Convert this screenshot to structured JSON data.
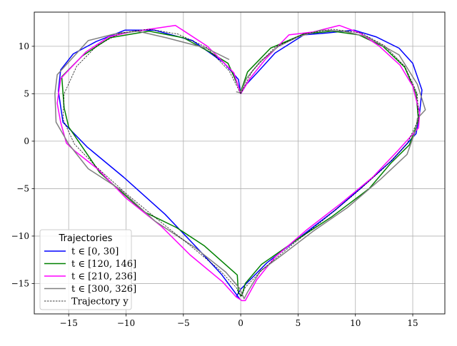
{
  "chart_data": {
    "type": "line",
    "title": "",
    "xlabel": "",
    "ylabel": "",
    "xlim": [
      -18.0,
      17.8
    ],
    "ylim": [
      -18.2,
      13.6
    ],
    "xticks": [
      -15,
      -10,
      -5,
      0,
      5,
      10,
      15
    ],
    "yticks": [
      -15,
      -10,
      -5,
      0,
      5,
      10
    ],
    "xtick_labels": [
      "−15",
      "−10",
      "−5",
      "0",
      "5",
      "10",
      "15"
    ],
    "ytick_labels": [
      "−15",
      "−10",
      "−5",
      "0",
      "5",
      "10"
    ],
    "grid": true,
    "legend": {
      "title": "Trajectories",
      "placement": "lower-left",
      "entries": [
        "t ∈ [0, 30]",
        "t ∈ [120, 146]",
        "t ∈ [210, 236]",
        "t ∈ [300, 326]",
        "Trajectory y"
      ]
    },
    "series": [
      {
        "name": "t ∈ [0, 30]",
        "color": "#0000ff",
        "style": "solid",
        "points": [
          [
            0,
            5
          ],
          [
            0.5,
            6
          ],
          [
            1.5,
            7.3
          ],
          [
            3.0,
            9.3
          ],
          [
            5.5,
            11.2
          ],
          [
            7.5,
            11.4
          ],
          [
            9.9,
            11.7
          ],
          [
            11.8,
            11.0
          ],
          [
            13.8,
            9.8
          ],
          [
            15.0,
            8.2
          ],
          [
            15.8,
            5.4
          ],
          [
            15.6,
            3.0
          ],
          [
            15.3,
            0.8
          ],
          [
            13.2,
            -2.0
          ],
          [
            10.8,
            -4.6
          ],
          [
            8.2,
            -7.3
          ],
          [
            5.3,
            -10.0
          ],
          [
            2.3,
            -12.8
          ],
          [
            0,
            -15.6
          ],
          [
            -0.4,
            -16.4
          ],
          [
            -0.1,
            -16.6
          ],
          [
            -1.7,
            -14.0
          ],
          [
            -4.0,
            -11.0
          ],
          [
            -6.6,
            -7.7
          ],
          [
            -10.2,
            -3.8
          ],
          [
            -13.4,
            -0.6
          ],
          [
            -15.5,
            2.0
          ],
          [
            -15.9,
            5.3
          ],
          [
            -15.7,
            7.5
          ],
          [
            -14.6,
            9.2
          ],
          [
            -12.6,
            10.5
          ],
          [
            -10.1,
            11.7
          ],
          [
            -7.5,
            11.7
          ],
          [
            -4.2,
            10.6
          ],
          [
            -1.5,
            8.3
          ],
          [
            -0.2,
            6.5
          ],
          [
            0,
            5
          ]
        ]
      },
      {
        "name": "t ∈ [120, 146]",
        "color": "#008000",
        "style": "solid",
        "points": [
          [
            0,
            5.2
          ],
          [
            0.6,
            7.3
          ],
          [
            2.6,
            9.8
          ],
          [
            5.5,
            11.3
          ],
          [
            8.0,
            11.6
          ],
          [
            10.3,
            11.2
          ],
          [
            12.4,
            10.0
          ],
          [
            14.3,
            7.8
          ],
          [
            15.3,
            5.0
          ],
          [
            15.5,
            2.2
          ],
          [
            14.7,
            -0.4
          ],
          [
            13.1,
            -2.3
          ],
          [
            11.2,
            -5.0
          ],
          [
            7.9,
            -8.0
          ],
          [
            5.0,
            -10.3
          ],
          [
            1.8,
            -13.0
          ],
          [
            0.4,
            -15.0
          ],
          [
            0.1,
            -16.3
          ],
          [
            -0.2,
            -16.0
          ],
          [
            -0.3,
            -14.1
          ],
          [
            -3.2,
            -11.0
          ],
          [
            -5.6,
            -9.1
          ],
          [
            -8.5,
            -7.4
          ],
          [
            -12.3,
            -3.3
          ],
          [
            -15.0,
            1.5
          ],
          [
            -15.4,
            3.5
          ],
          [
            -15.6,
            6.8
          ],
          [
            -13.8,
            9.0
          ],
          [
            -11.4,
            10.9
          ],
          [
            -8.0,
            11.6
          ],
          [
            -5.0,
            10.9
          ],
          [
            -2.7,
            9.4
          ],
          [
            -1.1,
            8.2
          ],
          [
            0,
            5.2
          ]
        ]
      },
      {
        "name": "t ∈ [210, 236]",
        "color": "#ff00ff",
        "style": "solid",
        "points": [
          [
            0,
            5.0
          ],
          [
            0.8,
            6.6
          ],
          [
            2.2,
            8.7
          ],
          [
            4.2,
            11.2
          ],
          [
            6.3,
            11.5
          ],
          [
            8.6,
            12.2
          ],
          [
            10.4,
            11.4
          ],
          [
            12.1,
            10.0
          ],
          [
            13.9,
            8.0
          ],
          [
            15.0,
            5.8
          ],
          [
            15.6,
            3.0
          ],
          [
            15.5,
            1.4
          ],
          [
            13.7,
            -1.0
          ],
          [
            11.5,
            -3.8
          ],
          [
            8.7,
            -6.6
          ],
          [
            5.8,
            -9.3
          ],
          [
            3.0,
            -12.2
          ],
          [
            1.4,
            -14.6
          ],
          [
            0.4,
            -16.8
          ],
          [
            0.1,
            -16.8
          ],
          [
            -0.4,
            -16.4
          ],
          [
            -1.6,
            -14.8
          ],
          [
            -4.4,
            -12.0
          ],
          [
            -6.9,
            -9.0
          ],
          [
            -10.0,
            -6.0
          ],
          [
            -12.4,
            -3.0
          ],
          [
            -14.5,
            -1.0
          ],
          [
            -15.2,
            -0.2
          ],
          [
            -15.7,
            2.0
          ],
          [
            -16.0,
            4.0
          ],
          [
            -15.7,
            6.6
          ],
          [
            -13.5,
            9.4
          ],
          [
            -11.5,
            11.0
          ],
          [
            -9.6,
            11.5
          ],
          [
            -5.7,
            12.2
          ],
          [
            -2.9,
            10.0
          ],
          [
            -0.6,
            7.2
          ],
          [
            0,
            5.0
          ]
        ]
      },
      {
        "name": "t ∈ [300, 326]",
        "color": "#808080",
        "style": "solid",
        "points": [
          [
            -1.0,
            8.6
          ],
          [
            -3.0,
            9.8
          ],
          [
            -6.5,
            10.9
          ],
          [
            -9.0,
            11.6
          ],
          [
            -11.0,
            11.3
          ],
          [
            -13.3,
            10.6
          ],
          [
            -16.0,
            7.0
          ],
          [
            -16.2,
            5.0
          ],
          [
            -16.1,
            2.0
          ],
          [
            -15.0,
            -0.3
          ],
          [
            -13.3,
            -2.9
          ],
          [
            -10.5,
            -5.1
          ],
          [
            -7.5,
            -8.4
          ],
          [
            -4.0,
            -11.2
          ],
          [
            -1.3,
            -13.8
          ],
          [
            -0.1,
            -15.5
          ],
          [
            0.3,
            -16.6
          ],
          [
            0.6,
            -15.9
          ],
          [
            1.7,
            -13.7
          ],
          [
            3.6,
            -12.0
          ],
          [
            6.3,
            -9.5
          ],
          [
            9.3,
            -7.0
          ],
          [
            12.2,
            -4.0
          ],
          [
            14.5,
            -1.4
          ],
          [
            15.3,
            1.3
          ],
          [
            15.4,
            2.4
          ],
          [
            16.1,
            3.3
          ],
          [
            15.4,
            6.0
          ],
          [
            13.8,
            9.1
          ],
          [
            11.0,
            11.0
          ],
          [
            9.0,
            11.6
          ],
          [
            7.0,
            11.7
          ],
          [
            5.0,
            11.0
          ],
          [
            3.3,
            10.0
          ],
          [
            1.7,
            8.4
          ],
          [
            0.5,
            6.6
          ],
          [
            0,
            5.1
          ],
          [
            -0.4,
            5.2
          ]
        ]
      },
      {
        "name": "Trajectory y",
        "color": "#000000",
        "style": "dashed",
        "points": [
          [
            0,
            5
          ],
          [
            1,
            7.4
          ],
          [
            3,
            9.9
          ],
          [
            5.5,
            11.3
          ],
          [
            8,
            11.8
          ],
          [
            10.5,
            11.4
          ],
          [
            12.5,
            10.1
          ],
          [
            14.3,
            7.9
          ],
          [
            15.4,
            5.0
          ],
          [
            15.5,
            2.3
          ],
          [
            14.5,
            -0.3
          ],
          [
            12.5,
            -2.8
          ],
          [
            10,
            -5.5
          ],
          [
            7.3,
            -8.2
          ],
          [
            4.6,
            -10.8
          ],
          [
            2,
            -13.4
          ],
          [
            0.4,
            -15.4
          ],
          [
            0,
            -16.4
          ],
          [
            -0.4,
            -15.4
          ],
          [
            -2,
            -13.4
          ],
          [
            -4.6,
            -10.8
          ],
          [
            -7.3,
            -8.2
          ],
          [
            -10,
            -5.5
          ],
          [
            -12.5,
            -2.8
          ],
          [
            -14.5,
            -0.3
          ],
          [
            -15.5,
            2.3
          ],
          [
            -15.4,
            5.0
          ],
          [
            -14.3,
            7.9
          ],
          [
            -12.5,
            10.1
          ],
          [
            -10.5,
            11.4
          ],
          [
            -8,
            11.8
          ],
          [
            -5.5,
            11.3
          ],
          [
            -3,
            9.9
          ],
          [
            -1,
            7.4
          ],
          [
            0,
            5
          ]
        ]
      }
    ]
  }
}
